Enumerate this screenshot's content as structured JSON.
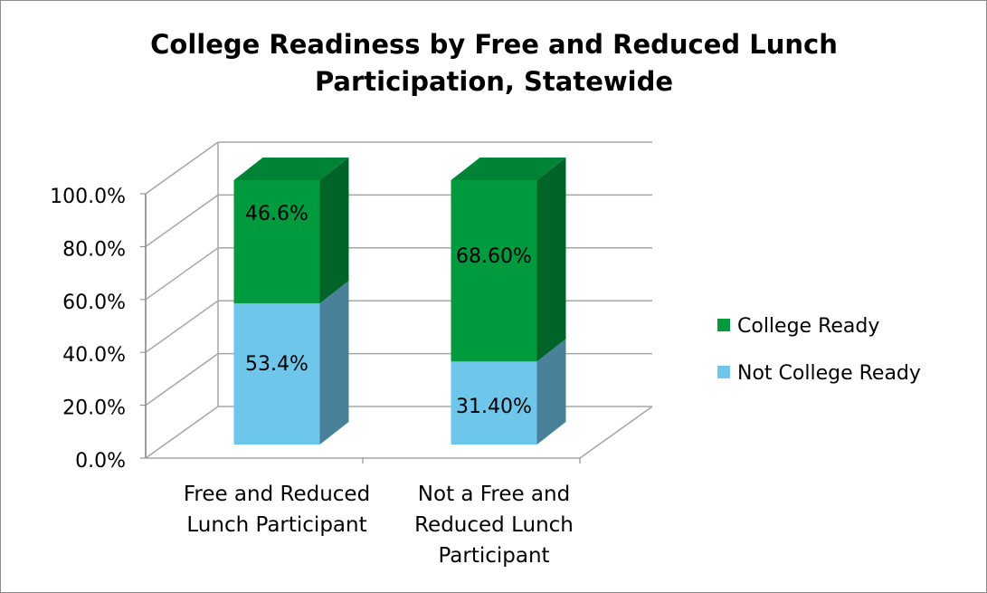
{
  "chart_data": {
    "type": "stacked-bar-3d",
    "title": "College Readiness  by Free and Reduced Lunch Participation, Statewide",
    "categories": [
      "Free and Reduced Lunch Participant",
      "Not a Free and Reduced Lunch Participant"
    ],
    "series": [
      {
        "name": "Not College Ready",
        "color": "#6ec6ea",
        "values": [
          53.4,
          31.4
        ],
        "value_labels": [
          "53.4%",
          "31.40%"
        ]
      },
      {
        "name": "College Ready",
        "color": "#009a3e",
        "values": [
          46.6,
          68.6
        ],
        "value_labels": [
          "46.6%",
          "68.60%"
        ]
      }
    ],
    "ylim": [
      0,
      100
    ],
    "yticks": [
      {
        "value": 0,
        "label": "0.0%"
      },
      {
        "value": 20,
        "label": "20.0%"
      },
      {
        "value": 40,
        "label": "40.0%"
      },
      {
        "value": 60,
        "label": "60.0%"
      },
      {
        "value": 80,
        "label": "80.0%"
      },
      {
        "value": 100,
        "label": "100.0%"
      }
    ],
    "grid": true,
    "legend": "right"
  }
}
